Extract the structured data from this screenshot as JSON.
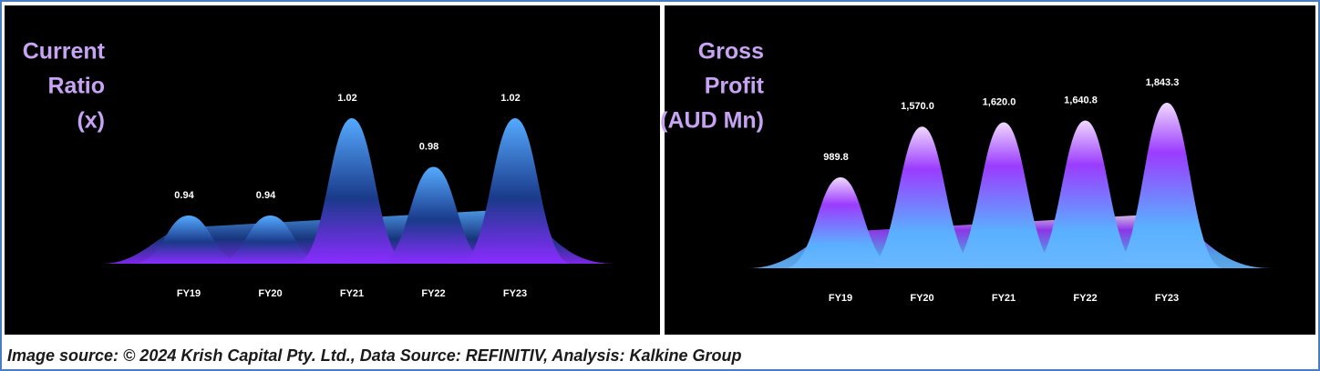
{
  "chart_data": [
    {
      "type": "area",
      "title": [
        "Current",
        "Ratio",
        "(x)"
      ],
      "categories": [
        "FY19",
        "FY20",
        "FY21",
        "FY22",
        "FY23"
      ],
      "values": [
        0.94,
        0.94,
        1.02,
        0.98,
        1.02
      ]
    },
    {
      "type": "area",
      "title": [
        "Gross",
        "Profit",
        "(AUD Mn)"
      ],
      "categories": [
        "FY19",
        "FY20",
        "FY21",
        "FY22",
        "FY23"
      ],
      "values": [
        989.8,
        1570.0,
        1620.0,
        1640.8,
        1843.3
      ],
      "value_labels": [
        "989.8",
        "1,570.0",
        "1,620.0",
        "1,640.8",
        "1,843.3"
      ]
    }
  ],
  "caption": "Image source: © 2024 Krish Capital Pty. Ltd., Data Source: REFINITIV, Analysis: Kalkine Group"
}
